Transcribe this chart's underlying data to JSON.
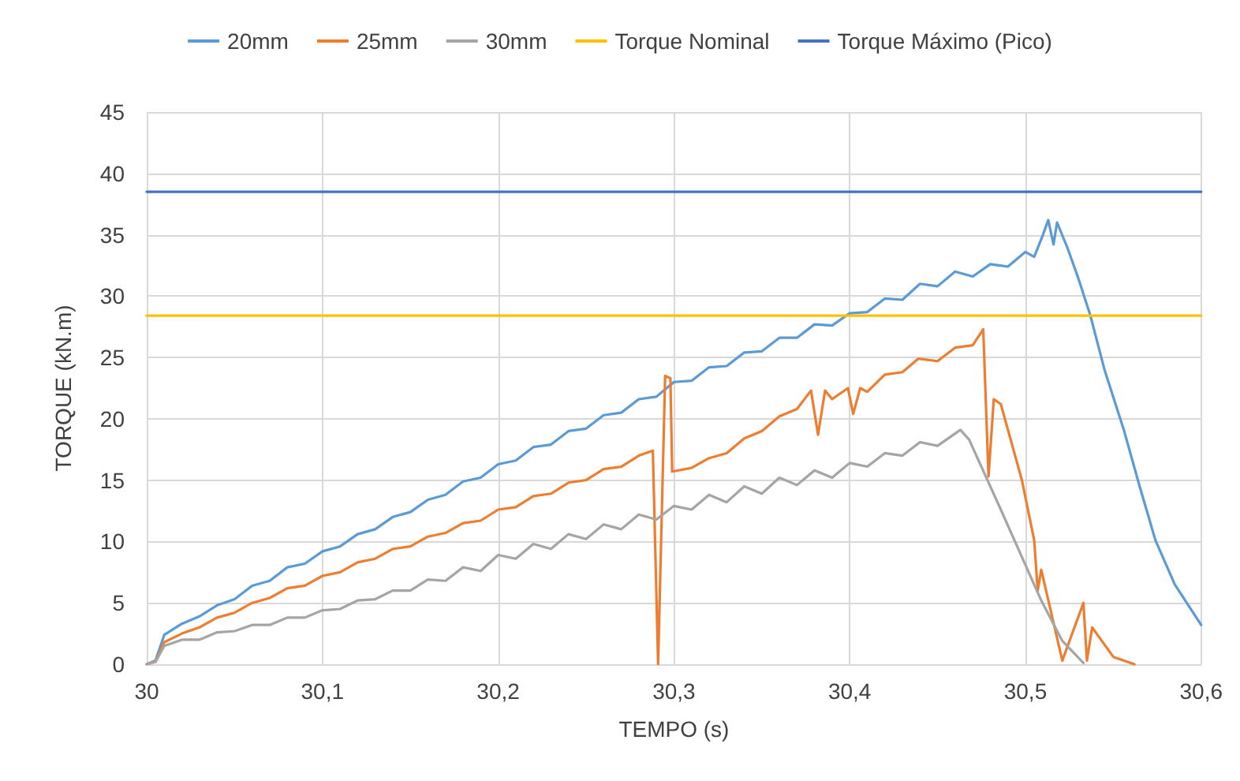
{
  "chart_data": {
    "type": "line",
    "xlabel": "TEMPO (s)",
    "ylabel": "TORQUE (kN.m)",
    "xlim": [
      30,
      30.6
    ],
    "xticks": [
      30,
      {
        "value": 30.1,
        "label": "30,1"
      },
      {
        "value": 30.2,
        "label": "30,2"
      },
      {
        "value": 30.3,
        "label": "30,3"
      },
      {
        "value": 30.4,
        "label": "30,4"
      },
      {
        "value": 30.5,
        "label": "30,5"
      },
      {
        "value": 30.6,
        "label": "30,6"
      }
    ],
    "ylim": [
      0,
      45
    ],
    "yticks": [
      0,
      5,
      10,
      15,
      20,
      25,
      30,
      35,
      40,
      45
    ],
    "grid": true,
    "legend": "top",
    "marker": "none",
    "line_style": "solid",
    "series": [
      {
        "name": "20mm",
        "color": "#5b9bd5",
        "x": [
          30,
          30.005,
          30.01,
          30.02,
          30.03,
          30.04,
          30.05,
          30.06,
          30.07,
          30.08,
          30.09,
          30.1,
          30.11,
          30.12,
          30.13,
          30.14,
          30.15,
          30.16,
          30.17,
          30.18,
          30.19,
          30.2,
          30.21,
          30.22,
          30.23,
          30.24,
          30.25,
          30.26,
          30.27,
          30.28,
          30.29,
          30.3,
          30.31,
          30.32,
          30.33,
          30.34,
          30.35,
          30.36,
          30.37,
          30.38,
          30.39,
          30.4,
          30.41,
          30.42,
          30.43,
          30.44,
          30.45,
          30.46,
          30.47,
          30.48,
          30.49,
          30.5,
          30.505,
          30.51,
          30.513,
          30.516,
          30.518,
          30.524,
          30.53,
          30.537,
          30.545,
          30.556,
          30.565,
          30.574,
          30.585,
          30.6
        ],
        "values": [
          0,
          0.3,
          2.4,
          3.3,
          3.9,
          4.8,
          5.3,
          6.4,
          6.8,
          7.9,
          8.2,
          9.2,
          9.6,
          10.6,
          11.0,
          12.0,
          12.4,
          13.4,
          13.8,
          14.9,
          15.2,
          16.3,
          16.6,
          17.7,
          17.9,
          19.0,
          19.2,
          20.3,
          20.5,
          21.6,
          21.8,
          23.0,
          23.1,
          24.2,
          24.3,
          25.4,
          25.5,
          26.6,
          26.6,
          27.7,
          27.6,
          28.6,
          28.7,
          29.8,
          29.7,
          31.0,
          30.8,
          32.0,
          31.6,
          32.6,
          32.4,
          33.6,
          33.2,
          35.0,
          36.2,
          34.2,
          36.0,
          33.9,
          31.5,
          28.4,
          24.0,
          19.1,
          14.5,
          10.1,
          6.5,
          3.2
        ]
      },
      {
        "name": "25mm",
        "color": "#ed7d31",
        "x": [
          30,
          30.005,
          30.01,
          30.02,
          30.03,
          30.04,
          30.05,
          30.06,
          30.07,
          30.08,
          30.09,
          30.1,
          30.11,
          30.12,
          30.13,
          30.14,
          30.15,
          30.16,
          30.17,
          30.18,
          30.19,
          30.2,
          30.21,
          30.22,
          30.23,
          30.24,
          30.25,
          30.26,
          30.27,
          30.28,
          30.288,
          30.291,
          30.295,
          30.298,
          30.299,
          30.31,
          30.32,
          30.33,
          30.34,
          30.35,
          30.36,
          30.37,
          30.378,
          30.382,
          30.386,
          30.39,
          30.399,
          30.402,
          30.406,
          30.41,
          30.42,
          30.43,
          30.439,
          30.45,
          30.46,
          30.47,
          30.476,
          30.479,
          30.482,
          30.486,
          30.498,
          30.505,
          30.507,
          30.509,
          30.521,
          30.533,
          30.535,
          30.538,
          30.55,
          30.562
        ],
        "values": [
          0,
          0.2,
          1.8,
          2.5,
          3.0,
          3.8,
          4.2,
          5.0,
          5.4,
          6.2,
          6.4,
          7.2,
          7.5,
          8.3,
          8.6,
          9.4,
          9.6,
          10.4,
          10.7,
          11.5,
          11.7,
          12.6,
          12.8,
          13.7,
          13.9,
          14.8,
          15.0,
          15.9,
          16.1,
          17.0,
          17.4,
          0,
          23.5,
          23.3,
          15.7,
          16.0,
          16.8,
          17.2,
          18.4,
          19.0,
          20.2,
          20.8,
          22.3,
          18.7,
          22.3,
          21.6,
          22.5,
          20.4,
          22.5,
          22.2,
          23.6,
          23.8,
          24.9,
          24.7,
          25.8,
          26.0,
          27.3,
          15.3,
          21.6,
          21.2,
          15.0,
          10.1,
          6.0,
          7.7,
          0.3,
          5.0,
          0.3,
          3.0,
          0.6,
          0
        ]
      },
      {
        "name": "30mm",
        "color": "#a5a5a5",
        "x": [
          30,
          30.005,
          30.01,
          30.02,
          30.03,
          30.04,
          30.05,
          30.06,
          30.07,
          30.08,
          30.09,
          30.1,
          30.11,
          30.12,
          30.13,
          30.14,
          30.15,
          30.16,
          30.17,
          30.18,
          30.19,
          30.2,
          30.21,
          30.22,
          30.23,
          30.24,
          30.25,
          30.26,
          30.27,
          30.28,
          30.29,
          30.3,
          30.31,
          30.32,
          30.33,
          30.34,
          30.35,
          30.36,
          30.37,
          30.38,
          30.39,
          30.4,
          30.41,
          30.42,
          30.43,
          30.44,
          30.45,
          30.463,
          30.468,
          30.486,
          30.509,
          30.521,
          30.533
        ],
        "values": [
          0,
          0.2,
          1.5,
          2.0,
          2.0,
          2.6,
          2.7,
          3.2,
          3.2,
          3.8,
          3.8,
          4.4,
          4.5,
          5.2,
          5.3,
          6.0,
          6.0,
          6.9,
          6.8,
          7.9,
          7.6,
          8.9,
          8.6,
          9.8,
          9.4,
          10.6,
          10.2,
          11.4,
          11.0,
          12.2,
          11.8,
          12.9,
          12.6,
          13.8,
          13.2,
          14.5,
          13.9,
          15.2,
          14.6,
          15.8,
          15.2,
          16.4,
          16.1,
          17.2,
          17.0,
          18.1,
          17.8,
          19.1,
          18.3,
          12.6,
          5.2,
          1.9,
          0.1
        ]
      },
      {
        "name": "Torque Nominal",
        "color": "#ffc000",
        "x": [
          30,
          30.6
        ],
        "values": [
          28.4,
          28.4
        ]
      },
      {
        "name": "Torque Máximo (Pico)",
        "color": "#4472c4",
        "x": [
          30,
          30.6
        ],
        "values": [
          38.5,
          38.5
        ]
      }
    ]
  }
}
